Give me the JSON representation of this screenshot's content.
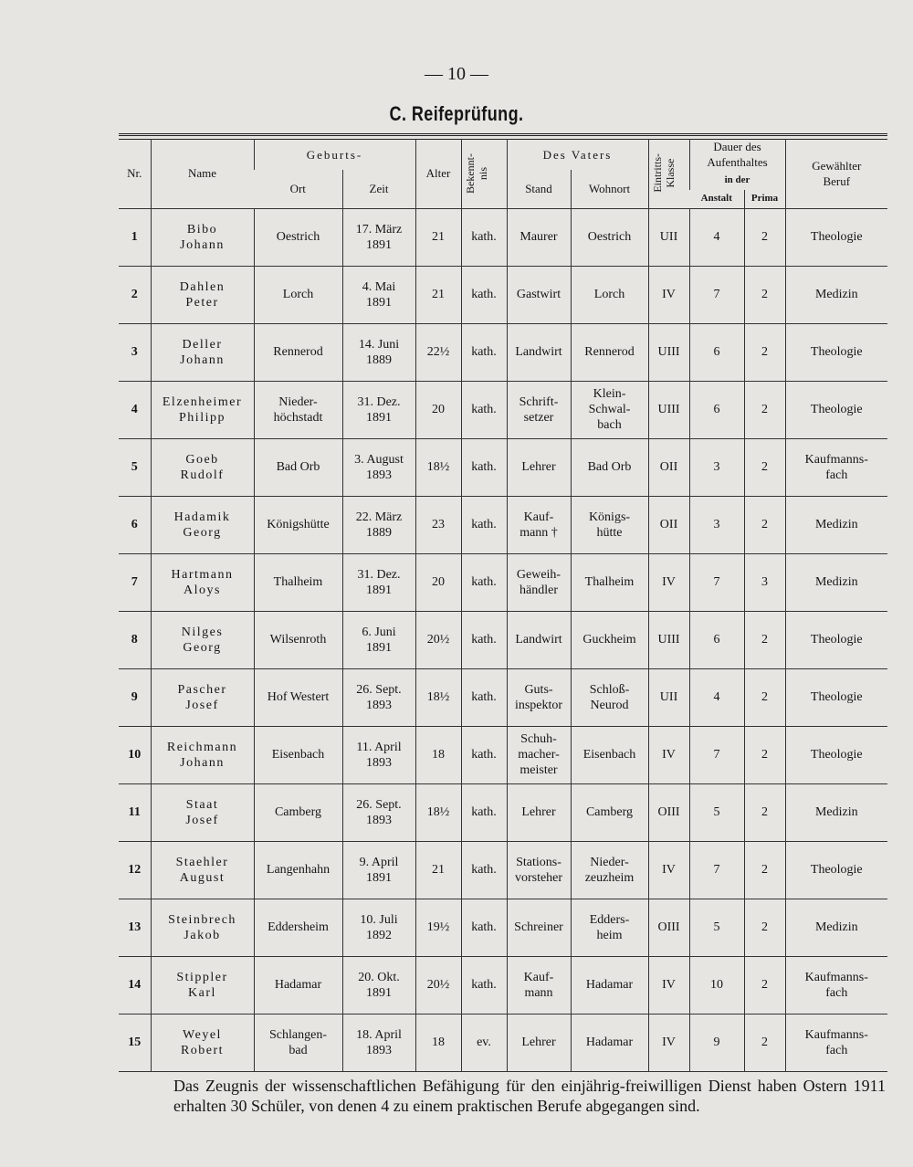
{
  "header": {
    "page_number": "— 10 —",
    "title": "C. Reifeprüfung."
  },
  "table": {
    "columns": {
      "nr": "Nr.",
      "name": "Name",
      "geburt": "Geburts-",
      "ort": "Ort",
      "zeit": "Zeit",
      "alter": "Alter",
      "bekenntnis": "Bekennt-\nnis",
      "vater": "Des Vaters",
      "stand": "Stand",
      "wohnort": "Wohnort",
      "klasse": "Eintritts-\nKlasse",
      "dauer": "Dauer des\nAufenthaltes",
      "in_der": "in der",
      "anstalt": "Anstalt",
      "prima": "Prima",
      "beruf": "Gewählter\nBeruf"
    },
    "rows": [
      [
        "1",
        "Bibo\nJohann",
        "Oestrich",
        "17. März\n1891",
        "21",
        "kath.",
        "Maurer",
        "Oestrich",
        "UII",
        "4",
        "2",
        "Theologie"
      ],
      [
        "2",
        "Dahlen\nPeter",
        "Lorch",
        "4. Mai\n1891",
        "21",
        "kath.",
        "Gastwirt",
        "Lorch",
        "IV",
        "7",
        "2",
        "Medizin"
      ],
      [
        "3",
        "Deller\nJohann",
        "Rennerod",
        "14. Juni\n1889",
        "22½",
        "kath.",
        "Landwirt",
        "Rennerod",
        "UIII",
        "6",
        "2",
        "Theologie"
      ],
      [
        "4",
        "Elzenheimer\nPhilipp",
        "Nieder-\nhöchstadt",
        "31. Dez.\n1891",
        "20",
        "kath.",
        "Schrift-\nsetzer",
        "Klein-\nSchwal-\nbach",
        "UIII",
        "6",
        "2",
        "Theologie"
      ],
      [
        "5",
        "Goeb\nRudolf",
        "Bad Orb",
        "3. August\n1893",
        "18½",
        "kath.",
        "Lehrer",
        "Bad Orb",
        "OII",
        "3",
        "2",
        "Kaufmanns-\nfach"
      ],
      [
        "6",
        "Hadamik\nGeorg",
        "Königshütte",
        "22. März\n1889",
        "23",
        "kath.",
        "Kauf-\nmann †",
        "Königs-\nhütte",
        "OII",
        "3",
        "2",
        "Medizin"
      ],
      [
        "7",
        "Hartmann\nAloys",
        "Thalheim",
        "31. Dez.\n1891",
        "20",
        "kath.",
        "Geweih-\nhändler",
        "Thalheim",
        "IV",
        "7",
        "3",
        "Medizin"
      ],
      [
        "8",
        "Nilges\nGeorg",
        "Wilsenroth",
        "6. Juni\n1891",
        "20½",
        "kath.",
        "Landwirt",
        "Guckheim",
        "UIII",
        "6",
        "2",
        "Theologie"
      ],
      [
        "9",
        "Pascher\nJosef",
        "Hof Westert",
        "26. Sept.\n1893",
        "18½",
        "kath.",
        "Guts-\ninspektor",
        "Schloß-\nNeurod",
        "UII",
        "4",
        "2",
        "Theologie"
      ],
      [
        "10",
        "Reichmann\nJohann",
        "Eisenbach",
        "11. April\n1893",
        "18",
        "kath.",
        "Schuh-\nmacher-\nmeister",
        "Eisenbach",
        "IV",
        "7",
        "2",
        "Theologie"
      ],
      [
        "11",
        "Staat\nJosef",
        "Camberg",
        "26. Sept.\n1893",
        "18½",
        "kath.",
        "Lehrer",
        "Camberg",
        "OIII",
        "5",
        "2",
        "Medizin"
      ],
      [
        "12",
        "Staehler\nAugust",
        "Langenhahn",
        "9. April\n1891",
        "21",
        "kath.",
        "Stations-\nvorsteher",
        "Nieder-\nzeuzheim",
        "IV",
        "7",
        "2",
        "Theologie"
      ],
      [
        "13",
        "Steinbrech\nJakob",
        "Eddersheim",
        "10. Juli\n1892",
        "19½",
        "kath.",
        "Schreiner",
        "Edders-\nheim",
        "OIII",
        "5",
        "2",
        "Medizin"
      ],
      [
        "14",
        "Stippler\nKarl",
        "Hadamar",
        "20. Okt.\n1891",
        "20½",
        "kath.",
        "Kauf-\nmann",
        "Hadamar",
        "IV",
        "10",
        "2",
        "Kaufmanns-\nfach"
      ],
      [
        "15",
        "Weyel\nRobert",
        "Schlangen-\nbad",
        "18. April\n1893",
        "18",
        "ev.",
        "Lehrer",
        "Hadamar",
        "IV",
        "9",
        "2",
        "Kaufmanns-\nfach"
      ]
    ]
  },
  "footer": "Das Zeugnis der wissenschaftlichen Befähigung für den einjährig-freiwilligen Dienst haben Ostern 1911 erhalten 30 Schüler, von denen 4 zu einem praktischen Berufe abgegangen sind."
}
